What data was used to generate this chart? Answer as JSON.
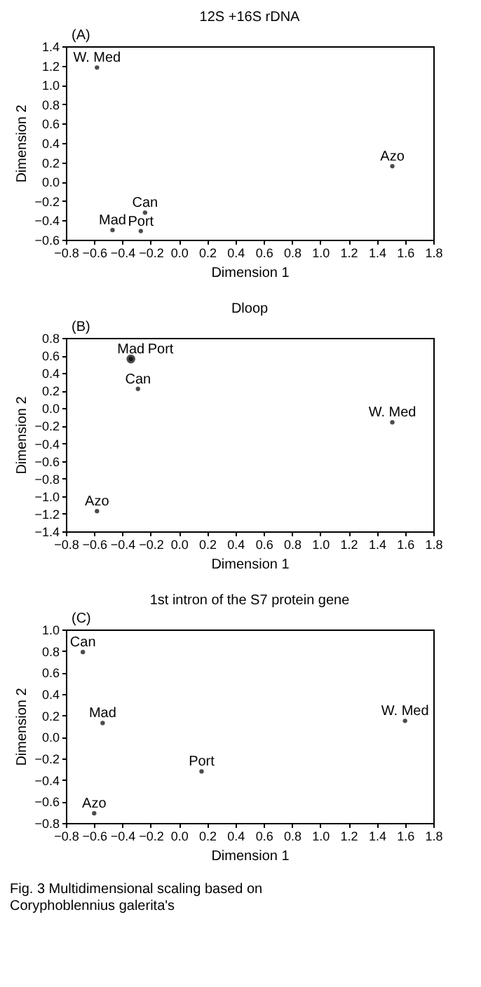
{
  "chart_data": [
    {
      "type": "scatter",
      "title": "12S +16S rDNA",
      "annotations": [
        "(A)"
      ],
      "xlabel": "Dimension 1",
      "ylabel": "Dimension 2",
      "marker": "circle",
      "xlim": [
        -0.8,
        1.8
      ],
      "ylim": [
        -0.6,
        1.4
      ],
      "xticks": [
        {
          "value": -0.8,
          "label": "−0.8"
        },
        {
          "value": -0.6,
          "label": "−0.6"
        },
        {
          "value": -0.4,
          "label": "−0.4"
        },
        {
          "value": -0.2,
          "label": "−0.2"
        },
        {
          "value": 0,
          "label": "0.0"
        },
        0.2,
        0.4,
        0.6,
        0.8,
        {
          "value": 1,
          "label": "1.0"
        },
        1.2,
        1.4,
        1.6,
        1.8
      ],
      "yticks": [
        {
          "value": -0.6,
          "label": "−0.6"
        },
        {
          "value": -0.4,
          "label": "−0.4"
        },
        {
          "value": -0.2,
          "label": "−0.2"
        },
        {
          "value": 0,
          "label": "0.0"
        },
        0.2,
        0.4,
        0.6,
        0.8,
        {
          "value": 1,
          "label": "1.0"
        },
        1.2,
        1.4
      ],
      "series": [
        {
          "name": "W. Med",
          "color": "#000000",
          "x": [
            -0.58
          ],
          "values": [
            1.18
          ]
        },
        {
          "name": "Azo",
          "color": "#000000",
          "x": [
            1.51
          ],
          "values": [
            0.16
          ]
        },
        {
          "name": "Can",
          "color": "#000000",
          "x": [
            -0.24
          ],
          "values": [
            -0.32
          ]
        },
        {
          "name": "Mad",
          "color": "#000000",
          "x": [
            -0.47
          ],
          "values": [
            -0.5
          ]
        },
        {
          "name": "Port",
          "color": "#000000",
          "x": [
            -0.27
          ],
          "values": [
            -0.51
          ]
        }
      ]
    },
    {
      "type": "scatter",
      "title": "Dloop",
      "annotations": [
        "(B)"
      ],
      "xlabel": "Dimension 1",
      "ylabel": "Dimension 2",
      "marker": "circle",
      "xlim": [
        -0.8,
        1.8
      ],
      "ylim": [
        -1.4,
        0.8
      ],
      "xticks": [
        {
          "value": -0.8,
          "label": "−0.8"
        },
        {
          "value": -0.6,
          "label": "−0.6"
        },
        {
          "value": -0.4,
          "label": "−0.4"
        },
        {
          "value": -0.2,
          "label": "−0.2"
        },
        {
          "value": 0,
          "label": "0.0"
        },
        0.2,
        0.4,
        0.6,
        0.8,
        {
          "value": 1,
          "label": "1.0"
        },
        1.2,
        1.4,
        1.6,
        1.8
      ],
      "yticks": [
        {
          "value": -1.4,
          "label": "−1.4"
        },
        {
          "value": -1.2,
          "label": "−1.2"
        },
        {
          "value": -1,
          "label": "−1.0"
        },
        {
          "value": -0.8,
          "label": "−0.8"
        },
        {
          "value": -0.6,
          "label": "−0.6"
        },
        {
          "value": -0.4,
          "label": "−0.4"
        },
        {
          "value": -0.2,
          "label": "−0.2"
        },
        {
          "value": 0,
          "label": "0.0"
        },
        0.2,
        0.4,
        0.6,
        0.8
      ],
      "series": [
        {
          "name": "Mad",
          "color": "#000000",
          "x": [
            -0.34
          ],
          "values": [
            0.56
          ]
        },
        {
          "name": "Port",
          "color": "#000000",
          "x": [
            -0.34
          ],
          "values": [
            0.56
          ]
        },
        {
          "name": "Can",
          "color": "#000000",
          "x": [
            -0.29
          ],
          "values": [
            0.22
          ]
        },
        {
          "name": "W. Med",
          "color": "#000000",
          "x": [
            1.51
          ],
          "values": [
            -0.16
          ]
        },
        {
          "name": "Azo",
          "color": "#000000",
          "x": [
            -0.58
          ],
          "values": [
            -1.17
          ]
        }
      ]
    },
    {
      "type": "scatter",
      "title": "1st intron of the S7 protein gene",
      "annotations": [
        "(C)",
        "Fig. 3 Multidimensional scaling based on Coryphoblennius galerita's"
      ],
      "xlabel": "Dimension 1",
      "ylabel": "Dimension 2",
      "marker": "circle",
      "xlim": [
        -0.8,
        1.8
      ],
      "ylim": [
        -0.8,
        1.0
      ],
      "xticks": [
        {
          "value": -0.8,
          "label": "−0.8"
        },
        {
          "value": -0.6,
          "label": "−0.6"
        },
        {
          "value": -0.4,
          "label": "−0.4"
        },
        {
          "value": -0.2,
          "label": "−0.2"
        },
        {
          "value": 0,
          "label": "0.0"
        },
        0.2,
        0.4,
        0.6,
        0.8,
        {
          "value": 1,
          "label": "1.0"
        },
        1.2,
        1.4,
        1.6,
        1.8
      ],
      "yticks": [
        {
          "value": -0.8,
          "label": "−0.8"
        },
        {
          "value": -0.6,
          "label": "−0.6"
        },
        {
          "value": -0.4,
          "label": "−0.4"
        },
        {
          "value": -0.2,
          "label": "−0.2"
        },
        {
          "value": 0,
          "label": "0.0"
        },
        0.2,
        0.4,
        0.6,
        0.8,
        {
          "value": 1,
          "label": "1.0"
        }
      ],
      "series": [
        {
          "name": "Can",
          "color": "#000000",
          "x": [
            -0.68
          ],
          "values": [
            0.79
          ]
        },
        {
          "name": "Mad",
          "color": "#000000",
          "x": [
            -0.54
          ],
          "values": [
            0.13
          ]
        },
        {
          "name": "W. Med",
          "color": "#000000",
          "x": [
            1.6
          ],
          "values": [
            0.15
          ]
        },
        {
          "name": "Port",
          "color": "#000000",
          "x": [
            0.16
          ],
          "values": [
            -0.32
          ]
        },
        {
          "name": "Azo",
          "color": "#000000",
          "x": [
            -0.6
          ],
          "values": [
            -0.71
          ]
        }
      ]
    }
  ]
}
